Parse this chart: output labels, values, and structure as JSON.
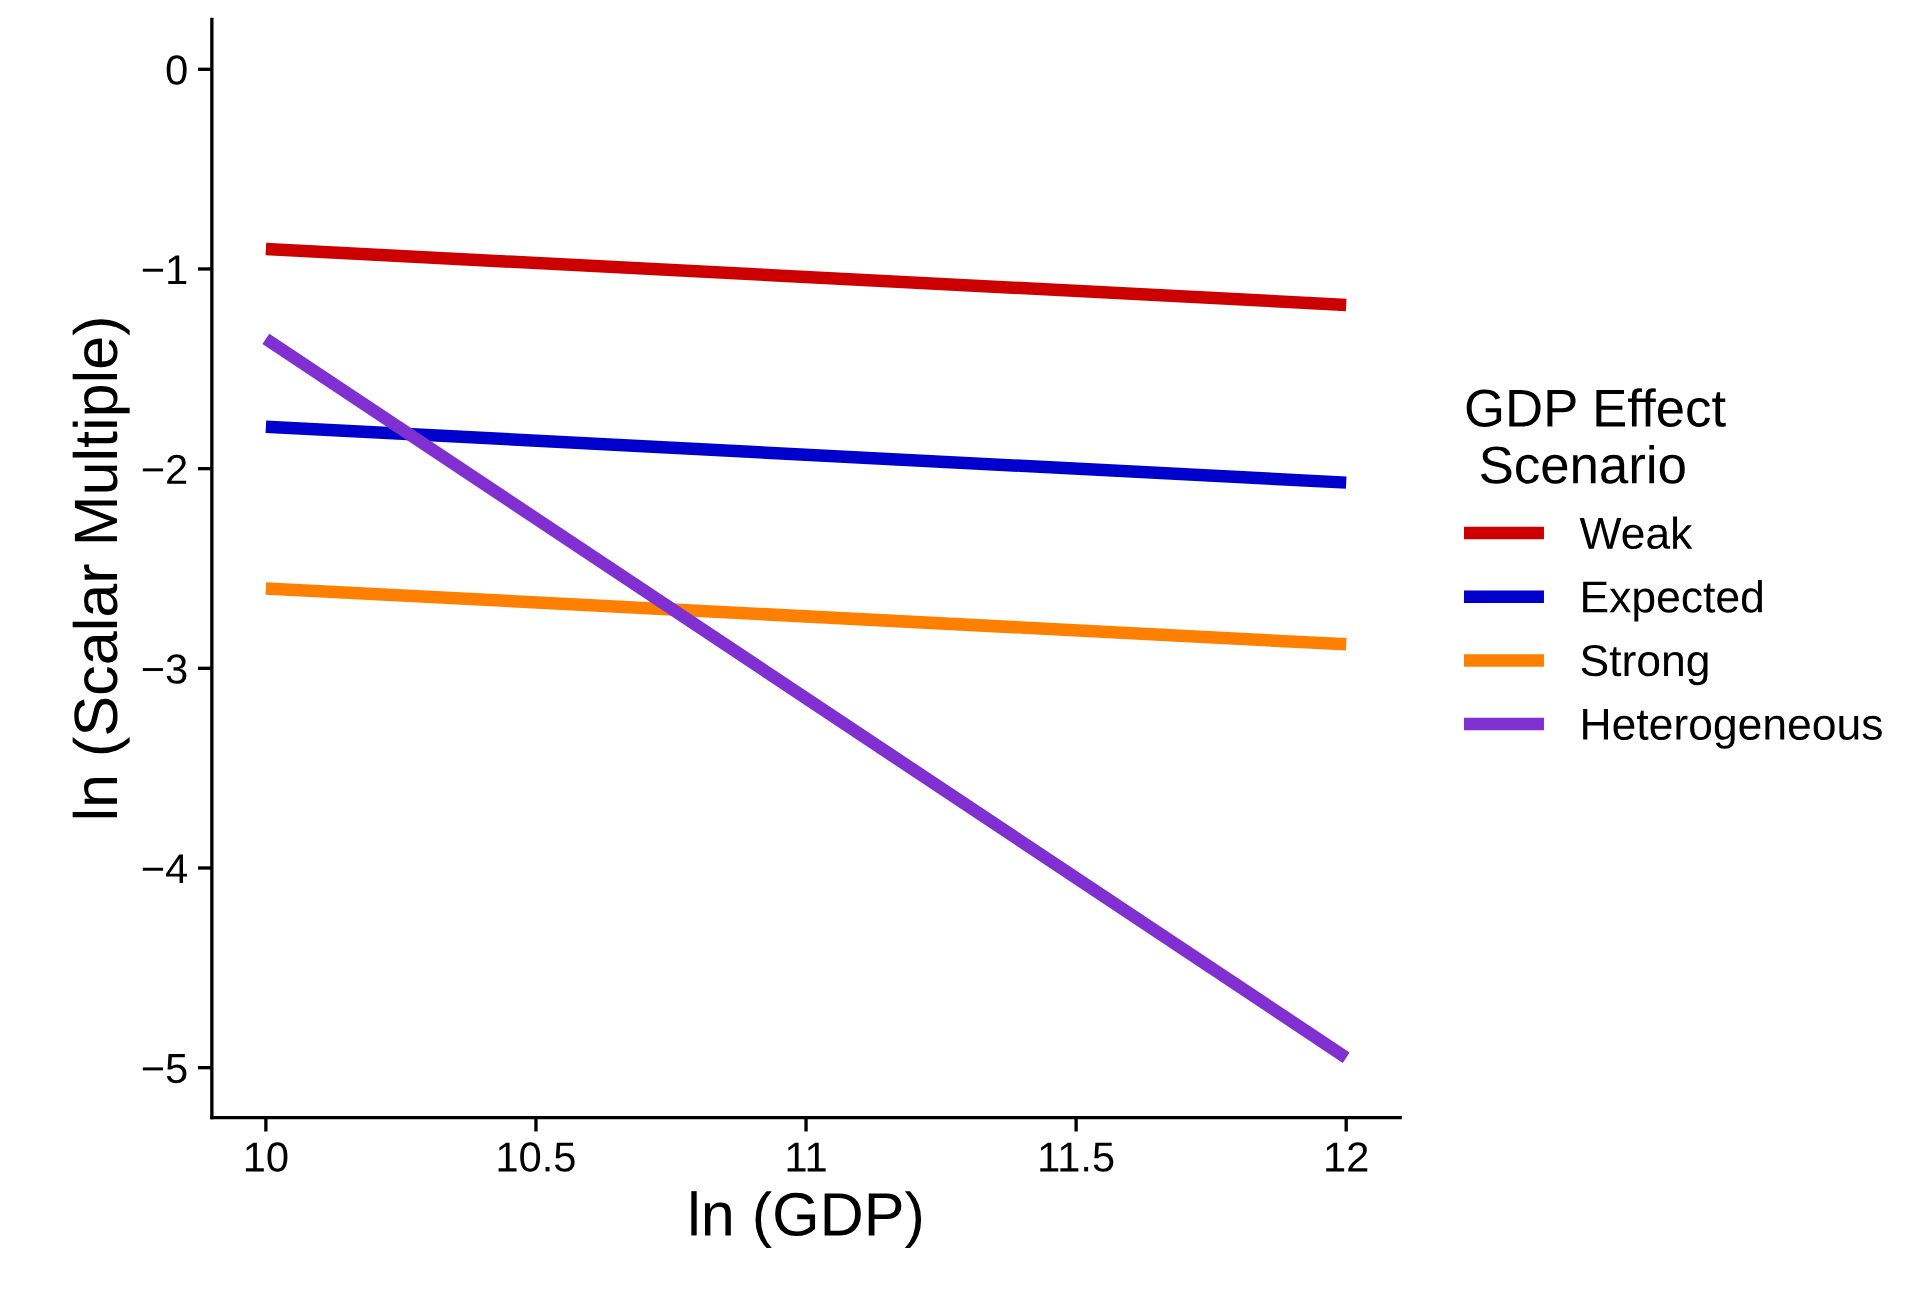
{
  "chart_data": {
    "type": "line",
    "xlabel": "ln (GDP)",
    "ylabel": "ln (Scalar Multiple)",
    "legend_title": "GDP Effect\n Scenario",
    "legend": "right",
    "grid": false,
    "marker": "none",
    "line_style": "solid",
    "xlim": [
      9.9,
      12.1
    ],
    "xticks": [
      10,
      10.5,
      11,
      11.5,
      12
    ],
    "ylim": [
      -5.25,
      0.25
    ],
    "yticks": [
      {
        "value": -5,
        "label": "−5"
      },
      {
        "value": -4,
        "label": "−4"
      },
      {
        "value": -3,
        "label": "−3"
      },
      {
        "value": -2,
        "label": "−2"
      },
      {
        "value": -1,
        "label": "−1"
      },
      0
    ],
    "x": [
      10,
      12
    ],
    "series": [
      {
        "name": "Weak",
        "color": "#cc0000",
        "values": [
          -0.9,
          -1.18
        ]
      },
      {
        "name": "Expected",
        "color": "#0000cc",
        "values": [
          -1.79,
          -2.07
        ]
      },
      {
        "name": "Strong",
        "color": "#ff8000",
        "values": [
          -2.6,
          -2.88
        ]
      },
      {
        "name": "Heterogeneous",
        "color": "#8030d0",
        "values": [
          -1.35,
          -4.95
        ]
      }
    ]
  }
}
